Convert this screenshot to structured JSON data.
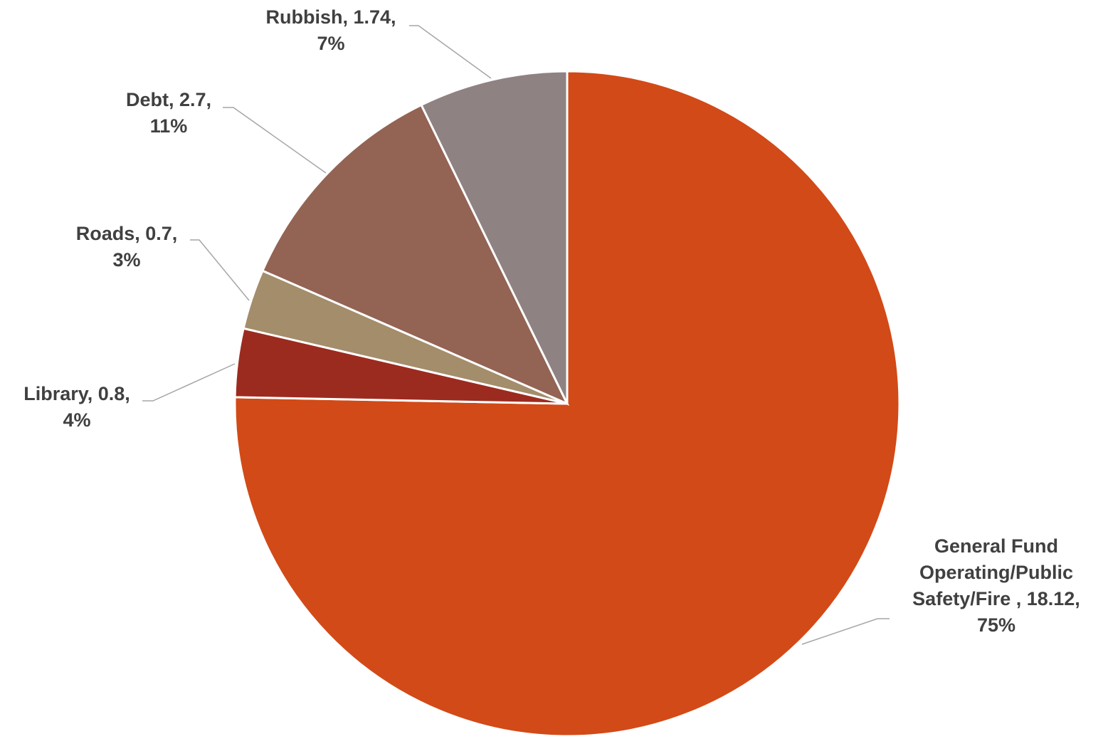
{
  "chart_data": {
    "type": "pie",
    "title": "",
    "start_angle_deg": 0,
    "direction": "clockwise",
    "slices": [
      {
        "name": "General Fund Operating/Public Safety/Fire",
        "value": 18.12,
        "percent": "75%",
        "color": "#d24a17",
        "label_lines": [
          "General Fund",
          "Operating/Public",
          "Safety/Fire , 18.12,",
          "75%"
        ]
      },
      {
        "name": "Library",
        "value": 0.8,
        "percent": "4%",
        "color": "#9c2b1f",
        "label_lines": [
          "Library, 0.8,",
          "4%"
        ]
      },
      {
        "name": "Roads",
        "value": 0.7,
        "percent": "3%",
        "color": "#a38d6b",
        "label_lines": [
          "Roads, 0.7,",
          "3%"
        ]
      },
      {
        "name": "Debt",
        "value": 2.7,
        "percent": "11%",
        "color": "#936353",
        "label_lines": [
          "Debt, 2.7,",
          "11%"
        ]
      },
      {
        "name": "Rubbish",
        "value": 1.74,
        "percent": "7%",
        "color": "#8f8282",
        "label_lines": [
          "Rubbish, 1.74,",
          "7%"
        ]
      }
    ],
    "legend": "none"
  }
}
